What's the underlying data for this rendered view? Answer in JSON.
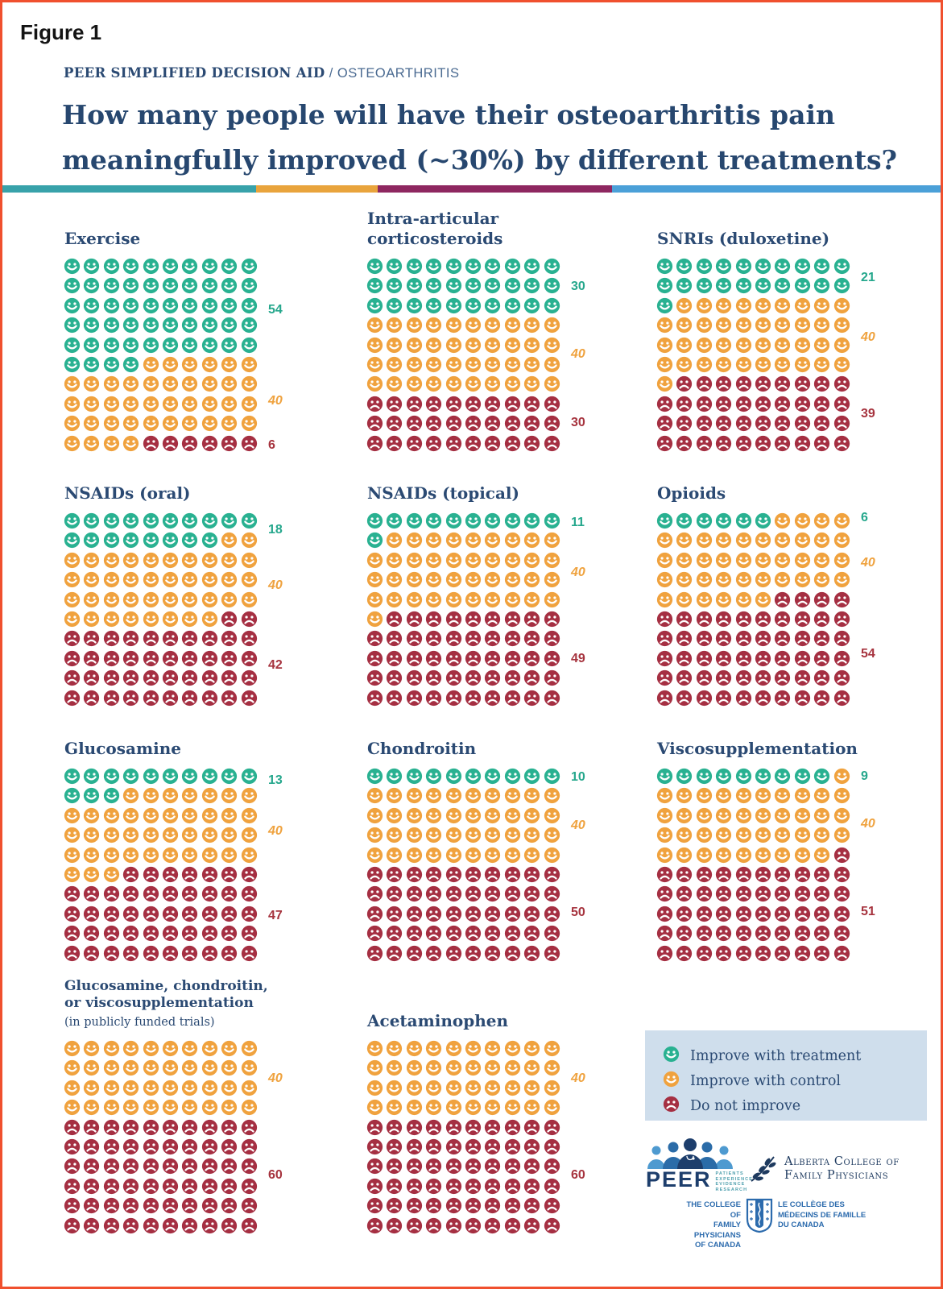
{
  "page": {
    "figure_label": "Figure 1",
    "kicker": {
      "bold": "PEER SIMPLIFIED DECISION AID",
      "light": "/ OSTEOARTHRITIS"
    },
    "title_line1": "How many people will have their osteoarthritis pain",
    "title_line2": "meaningfully improved (~30%) by different treatments?"
  },
  "colors": {
    "page_border": "#F0502E",
    "navy": "#2B4A73",
    "legend_bg": "#CFDEEC",
    "bar_segments": [
      {
        "color": "#38A2AA",
        "fraction": 0.27
      },
      {
        "color": "#E9A43C",
        "fraction": 0.13
      },
      {
        "color": "#8E2760",
        "fraction": 0.25
      },
      {
        "color": "#4BA0D8",
        "fraction": 0.35
      }
    ]
  },
  "chart_data": {
    "type": "waffle-pictogram",
    "unit_total": 100,
    "grid": "10x10 faces, filled left-to-right top-to-bottom",
    "series": [
      {
        "key": "improve_with_treatment",
        "label": "Improve with treatment",
        "color": "#29B191",
        "face": "happy",
        "number_style": "normal"
      },
      {
        "key": "improve_with_control",
        "label": "Improve with control",
        "color": "#F0A23E",
        "face": "happy",
        "number_style": "italic"
      },
      {
        "key": "do_not_improve",
        "label": "Do not improve",
        "color": "#A52F42",
        "face": "sad",
        "number_style": "normal"
      }
    ],
    "charts": [
      {
        "title_lines": [
          "Exercise"
        ],
        "values": [
          54,
          40,
          6
        ]
      },
      {
        "title_lines": [
          "Intra-articular",
          "corticosteroids"
        ],
        "values": [
          30,
          40,
          30
        ]
      },
      {
        "title_lines": [
          "SNRIs (duloxetine)"
        ],
        "values": [
          21,
          40,
          39
        ]
      },
      {
        "title_lines": [
          "NSAIDs (oral)"
        ],
        "values": [
          18,
          40,
          42
        ]
      },
      {
        "title_lines": [
          "NSAIDs (topical)"
        ],
        "values": [
          11,
          40,
          49
        ]
      },
      {
        "title_lines": [
          "Opioids"
        ],
        "values": [
          6,
          40,
          54
        ]
      },
      {
        "title_lines": [
          "Glucosamine"
        ],
        "values": [
          13,
          40,
          47
        ]
      },
      {
        "title_lines": [
          "Chondroitin"
        ],
        "values": [
          10,
          40,
          50
        ]
      },
      {
        "title_lines": [
          "Viscosupplementation"
        ],
        "values": [
          9,
          40,
          51
        ]
      },
      {
        "title_lines": [
          "Glucosamine, chondroitin,",
          "or viscosupplementation"
        ],
        "subtitle": "(in publicly funded trials)",
        "values": [
          0,
          40,
          60
        ]
      },
      {
        "title_lines": [
          "Acetaminophen"
        ],
        "values": [
          0,
          40,
          60
        ]
      }
    ]
  },
  "logos": {
    "peer": {
      "wordmark": "PEER",
      "tagline_lines": [
        "PATIENTS",
        "EXPERIENCE",
        "EVIDENCE",
        "RESEARCH"
      ]
    },
    "acfp": {
      "line1": "Alberta College of",
      "line2": "Family Physicians"
    },
    "cfpc": {
      "left_lines": [
        "THE COLLEGE OF",
        "FAMILY PHYSICIANS",
        "OF CANADA"
      ],
      "right_lines": [
        "LE COLLÈGE DES",
        "MÉDECINS DE FAMILLE",
        "DU CANADA"
      ]
    }
  }
}
